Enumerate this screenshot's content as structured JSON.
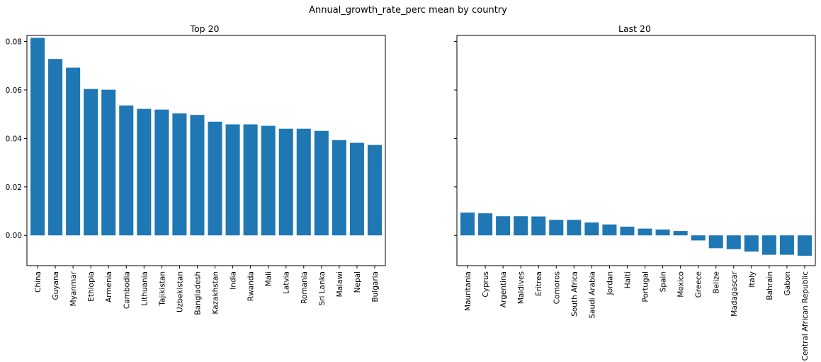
{
  "figure": {
    "suptitle": "Annual_growth_rate_perc mean by country"
  },
  "chart_data": [
    {
      "type": "bar",
      "title": "Top 20",
      "xlabel": "",
      "ylabel": "",
      "ylim": [
        -0.0125,
        0.0825
      ],
      "yticks": [
        0.0,
        0.02,
        0.04,
        0.06,
        0.08
      ],
      "ytick_labels": [
        "0.00",
        "0.02",
        "0.04",
        "0.06",
        "0.08"
      ],
      "bar_color": "#1f77b4",
      "categories": [
        "China",
        "Guyana",
        "Myanmar",
        "Ethiopia",
        "Armenia",
        "Cambodia",
        "Lithuania",
        "Tajikistan",
        "Uzbekistan",
        "Bangladesh",
        "Kazakhstan",
        "India",
        "Rwanda",
        "Mali",
        "Latvia",
        "Romania",
        "Sri Lanka",
        "Malawi",
        "Nepal",
        "Bulgaria"
      ],
      "values": [
        0.0815,
        0.0728,
        0.0692,
        0.0604,
        0.0601,
        0.0536,
        0.0522,
        0.0519,
        0.0503,
        0.0497,
        0.0469,
        0.0458,
        0.0458,
        0.0452,
        0.044,
        0.044,
        0.0431,
        0.0393,
        0.0382,
        0.0373
      ]
    },
    {
      "type": "bar",
      "title": "Last 20",
      "xlabel": "",
      "ylabel": "",
      "ylim": [
        -0.0125,
        0.0825
      ],
      "yticks": [
        0.0,
        0.02,
        0.04,
        0.06,
        0.08
      ],
      "ytick_labels": [
        "",
        "",
        "",
        "",
        ""
      ],
      "bar_color": "#1f77b4",
      "categories": [
        "Mauritania",
        "Cyprus",
        "Argentina",
        "Maldives",
        "Eritrea",
        "Comoros",
        "South Africa",
        "Saudi Arabia",
        "Jordan",
        "Haiti",
        "Portugal",
        "Spain",
        "Mexico",
        "Greece",
        "Belize",
        "Madagascar",
        "Italy",
        "Bahrain",
        "Gabon",
        "Central African Republic"
      ],
      "values": [
        0.0094,
        0.0091,
        0.0079,
        0.0079,
        0.0078,
        0.0064,
        0.0064,
        0.0053,
        0.0045,
        0.0036,
        0.0028,
        0.0024,
        0.0018,
        -0.0021,
        -0.0053,
        -0.0057,
        -0.0067,
        -0.008,
        -0.008,
        -0.0084
      ]
    }
  ]
}
